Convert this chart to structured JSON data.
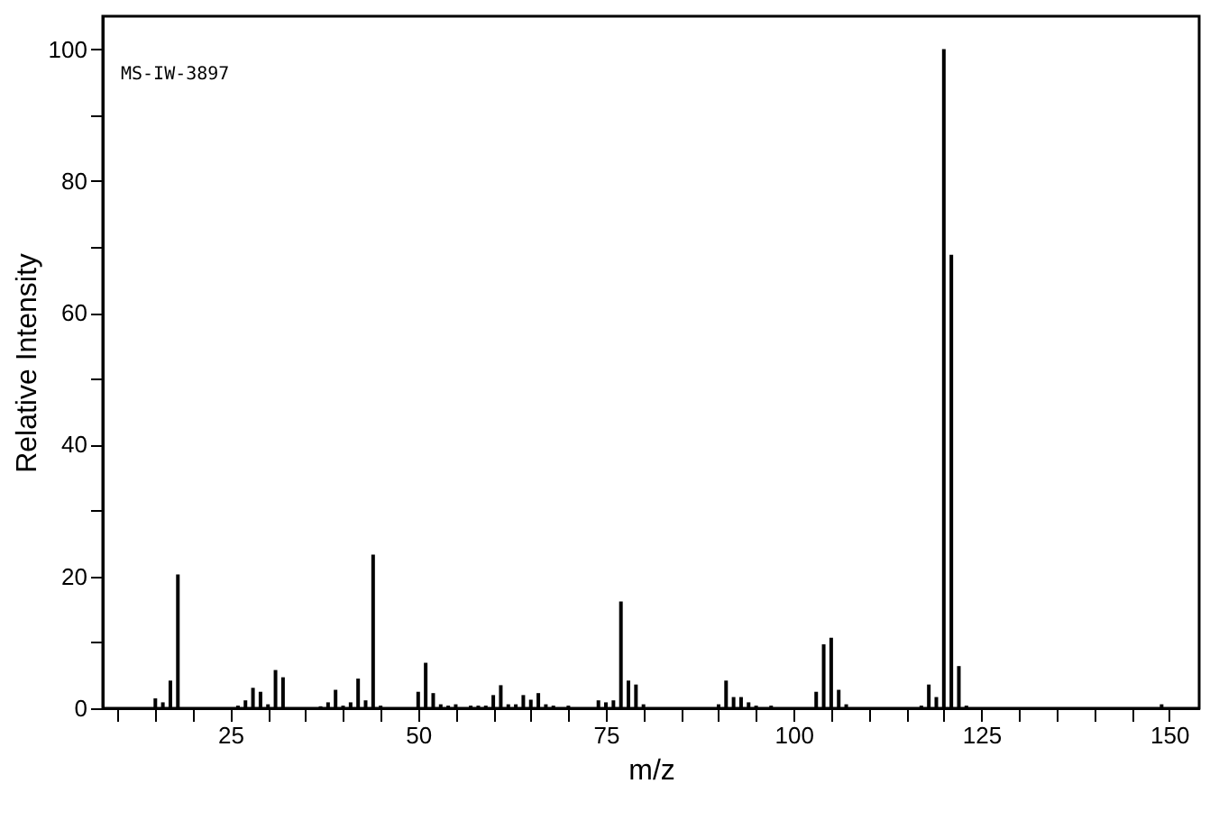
{
  "chart_data": {
    "type": "bar",
    "xlabel": "m/z",
    "ylabel": "Relative Intensity",
    "annotations": [
      "MS-IW-3897"
    ],
    "x": [
      15,
      16,
      17,
      18,
      26,
      27,
      28,
      29,
      30,
      31,
      32,
      37,
      38,
      39,
      40,
      41,
      42,
      43,
      44,
      45,
      50,
      51,
      52,
      53,
      54,
      55,
      57,
      58,
      59,
      60,
      61,
      62,
      63,
      64,
      65,
      66,
      67,
      68,
      70,
      74,
      75,
      76,
      77,
      78,
      79,
      80,
      90,
      91,
      92,
      93,
      94,
      95,
      97,
      103,
      104,
      105,
      106,
      107,
      117,
      118,
      119,
      120,
      121,
      122,
      123,
      149
    ],
    "series": [
      {
        "color": "#000000",
        "values": [
          1.5,
          0.9,
          4.2,
          20.3,
          0.4,
          1.2,
          3.1,
          2.5,
          0.6,
          5.8,
          4.7,
          0.3,
          0.9,
          2.8,
          0.4,
          0.9,
          4.5,
          1.2,
          23.3,
          0.4,
          2.5,
          6.9,
          2.3,
          0.6,
          0.4,
          0.6,
          0.4,
          0.4,
          0.4,
          2.0,
          3.5,
          0.6,
          0.6,
          2.0,
          1.3,
          2.3,
          0.6,
          0.4,
          0.4,
          1.2,
          0.9,
          1.2,
          16.2,
          4.2,
          3.6,
          0.6,
          0.6,
          4.2,
          1.7,
          1.7,
          0.9,
          0.4,
          0.4,
          2.5,
          9.7,
          10.7,
          2.8,
          0.6,
          0.4,
          3.6,
          1.7,
          100,
          68.8,
          6.4,
          0.4,
          0.6
        ]
      }
    ],
    "xlim": [
      8,
      154
    ],
    "ylim": [
      0,
      105
    ],
    "xticks": [
      {
        "value": 10,
        "label": null
      },
      {
        "value": 15,
        "label": null
      },
      {
        "value": 20,
        "label": null
      },
      25,
      {
        "value": 30,
        "label": null
      },
      {
        "value": 35,
        "label": null
      },
      {
        "value": 40,
        "label": null
      },
      {
        "value": 45,
        "label": null
      },
      50,
      {
        "value": 55,
        "label": null
      },
      {
        "value": 60,
        "label": null
      },
      {
        "value": 65,
        "label": null
      },
      {
        "value": 70,
        "label": null
      },
      75,
      {
        "value": 80,
        "label": null
      },
      {
        "value": 85,
        "label": null
      },
      {
        "value": 90,
        "label": null
      },
      {
        "value": 95,
        "label": null
      },
      100,
      {
        "value": 105,
        "label": null
      },
      {
        "value": 110,
        "label": null
      },
      {
        "value": 115,
        "label": null
      },
      {
        "value": 120,
        "label": null
      },
      125,
      {
        "value": 130,
        "label": null
      },
      {
        "value": 135,
        "label": null
      },
      {
        "value": 140,
        "label": null
      },
      {
        "value": 145,
        "label": null
      },
      150
    ],
    "yticks": [
      0,
      {
        "value": 10,
        "label": null
      },
      20,
      {
        "value": 30,
        "label": null
      },
      40,
      {
        "value": 50,
        "label": null
      },
      60,
      {
        "value": 70,
        "label": null
      },
      80,
      {
        "value": 90,
        "label": null
      },
      100
    ],
    "grid": false
  }
}
